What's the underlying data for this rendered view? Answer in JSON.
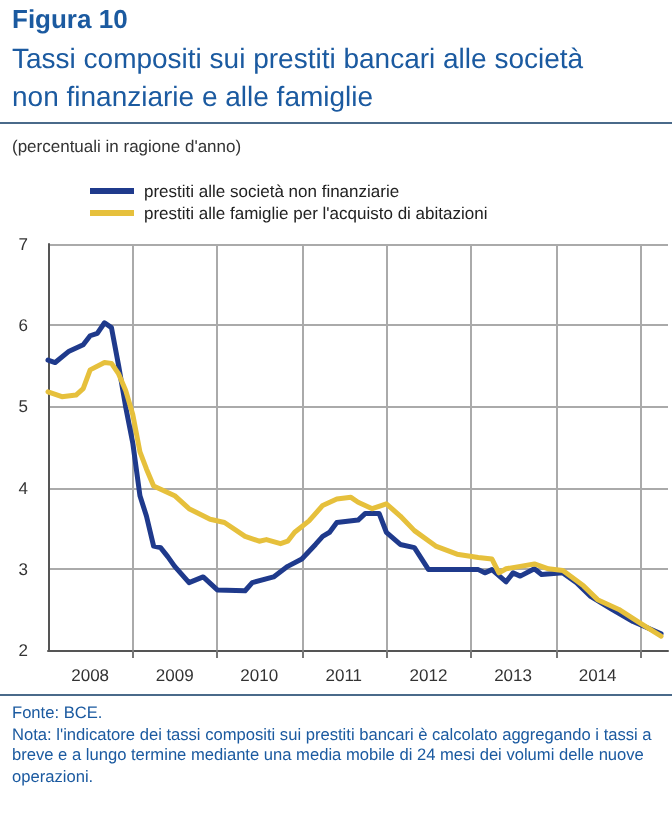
{
  "chart_data": {
    "type": "line",
    "title": "Tassi compositi sui prestiti bancari alle società non finanziarie e alle famiglie",
    "subtitle": "(percentuali in ragione d'anno)",
    "annotations": [
      "Figura 10",
      "Fonte: BCE.",
      "Nota: l'indicatore dei tassi compositi sui prestiti bancari è calcolato aggregando i tassi a breve e a lungo termine mediante una media mobile di 24 mesi dei volumi delle nuove operazioni."
    ],
    "series": [
      {
        "name": "prestiti alle società non finanziarie",
        "color": "#1f3a8c",
        "x": [
          "2008-01",
          "2008-02",
          "2008-04",
          "2008-06",
          "2008-07",
          "2008-08",
          "2008-09",
          "2008-10",
          "2008-11",
          "2008-12",
          "2009-01",
          "2009-02",
          "2009-03",
          "2009-04",
          "2009-05",
          "2009-06",
          "2009-07",
          "2009-09",
          "2009-11",
          "2010-01",
          "2010-05",
          "2010-06",
          "2010-09",
          "2010-11",
          "2011-01",
          "2011-03",
          "2011-04",
          "2011-05",
          "2011-06",
          "2011-09",
          "2011-10",
          "2011-12",
          "2012-01",
          "2012-03",
          "2012-05",
          "2012-07",
          "2013-02",
          "2013-03",
          "2013-04",
          "2013-06",
          "2013-07",
          "2013-08",
          "2013-10",
          "2013-11",
          "2014-02",
          "2014-04",
          "2014-06",
          "2014-09",
          "2014-12",
          "2015-04"
        ],
        "values": [
          5.57,
          5.54,
          5.68,
          5.76,
          5.87,
          5.9,
          6.03,
          5.97,
          5.5,
          5.0,
          4.55,
          3.9,
          3.65,
          3.28,
          3.26,
          3.15,
          3.03,
          2.83,
          2.9,
          2.74,
          2.73,
          2.83,
          2.9,
          3.03,
          3.12,
          3.3,
          3.4,
          3.45,
          3.57,
          3.6,
          3.68,
          3.68,
          3.45,
          3.3,
          3.26,
          2.99,
          2.99,
          2.95,
          2.99,
          2.84,
          2.95,
          2.91,
          3.0,
          2.93,
          2.95,
          2.83,
          2.66,
          2.5,
          2.35,
          2.2
        ]
      },
      {
        "name": "prestiti alle famiglie per l'acquisto di abitazioni",
        "color": "#e6c03c",
        "x": [
          "2008-01",
          "2008-03",
          "2008-05",
          "2008-06",
          "2008-07",
          "2008-09",
          "2008-10",
          "2008-11",
          "2008-12",
          "2009-01",
          "2009-02",
          "2009-03",
          "2009-04",
          "2009-07",
          "2009-09",
          "2009-12",
          "2010-02",
          "2010-05",
          "2010-07",
          "2010-08",
          "2010-10",
          "2010-11",
          "2010-12",
          "2011-02",
          "2011-04",
          "2011-06",
          "2011-08",
          "2011-09",
          "2011-11",
          "2012-01",
          "2012-03",
          "2012-05",
          "2012-08",
          "2012-11",
          "2013-02",
          "2013-04",
          "2013-05",
          "2013-06",
          "2013-08",
          "2013-10",
          "2013-12",
          "2014-02",
          "2014-05",
          "2014-07",
          "2014-10",
          "2015-01",
          "2015-04"
        ],
        "values": [
          5.18,
          5.12,
          5.14,
          5.22,
          5.45,
          5.54,
          5.53,
          5.4,
          5.2,
          4.9,
          4.44,
          4.23,
          4.02,
          3.9,
          3.74,
          3.61,
          3.57,
          3.4,
          3.34,
          3.36,
          3.31,
          3.34,
          3.45,
          3.59,
          3.78,
          3.86,
          3.88,
          3.82,
          3.74,
          3.8,
          3.65,
          3.47,
          3.28,
          3.18,
          3.14,
          3.12,
          2.95,
          3.0,
          3.03,
          3.06,
          3.0,
          2.98,
          2.79,
          2.62,
          2.5,
          2.33,
          2.17
        ]
      }
    ],
    "xlim": [
      "2008-01",
      "2015-05"
    ],
    "xticks": [
      {
        "value": "2008-07",
        "label": "2008"
      },
      {
        "value": "2009-01",
        "label": null
      },
      {
        "value": "2009-07",
        "label": "2009"
      },
      {
        "value": "2010-01",
        "label": null
      },
      {
        "value": "2010-07",
        "label": "2010"
      },
      {
        "value": "2011-01",
        "label": null
      },
      {
        "value": "2011-07",
        "label": "2011"
      },
      {
        "value": "2012-01",
        "label": null
      },
      {
        "value": "2012-07",
        "label": "2012"
      },
      {
        "value": "2013-01",
        "label": null
      },
      {
        "value": "2013-07",
        "label": "2013"
      },
      {
        "value": "2014-01",
        "label": null
      },
      {
        "value": "2014-07",
        "label": "2014"
      },
      {
        "value": "2015-01",
        "label": null
      }
    ],
    "ylim": [
      2,
      7
    ],
    "yticks": [
      2,
      3,
      4,
      5,
      6,
      7
    ],
    "grid": true,
    "legend": "top left",
    "marker": "none",
    "line_style": "solid"
  }
}
